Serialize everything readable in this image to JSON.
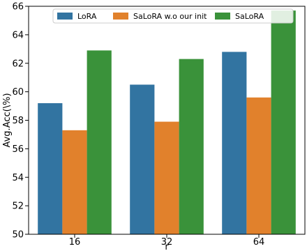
{
  "chart_data": {
    "type": "bar",
    "title": "",
    "xlabel": "r",
    "ylabel": "Avg.Acc(\\%)",
    "categories": [
      "16",
      "32",
      "64"
    ],
    "ylim": [
      50,
      66
    ],
    "yticks": [
      50,
      52,
      54,
      56,
      58,
      60,
      62,
      64,
      66
    ],
    "grid": false,
    "legend_position": "top-center",
    "series": [
      {
        "name": "LoRA",
        "color": "#3274a1",
        "values": [
          59.2,
          60.5,
          62.8
        ]
      },
      {
        "name": "SaLoRA w.o our init",
        "color": "#e1812c",
        "values": [
          57.3,
          57.9,
          59.6
        ]
      },
      {
        "name": "SaLoRA",
        "color": "#3a923a",
        "values": [
          62.9,
          62.3,
          65.7
        ]
      }
    ]
  }
}
